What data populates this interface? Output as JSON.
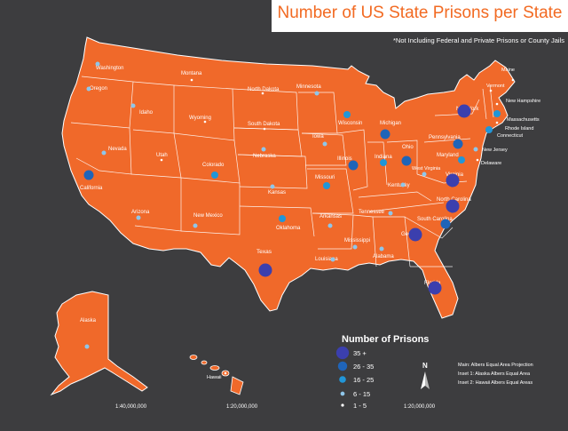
{
  "title": "Number of US State Prisons per State",
  "subtitle": "*Not Including Federal and Private Prisons or County Jails",
  "colors": {
    "background": "#3d3d3f",
    "land": "#f0692a",
    "border": "#ffffff",
    "title": "#f26a22",
    "tier_35_plus": "#3b3fae",
    "tier_26_35": "#1f64b8",
    "tier_16_25": "#2196d8",
    "tier_6_15": "#8fc6ea",
    "tier_1_5": "#ffffff"
  },
  "legend": {
    "title": "Number of Prisons",
    "items": [
      {
        "tier": "tier_35_plus",
        "label": "35 +"
      },
      {
        "tier": "tier_26_35",
        "label": "26 - 35"
      },
      {
        "tier": "tier_16_25",
        "label": "16 - 25"
      },
      {
        "tier": "tier_6_15",
        "label": "6 - 15"
      },
      {
        "tier": "tier_1_5",
        "label": "1 - 5"
      }
    ]
  },
  "projection_notes": [
    "Main: Albers Equal Area Projection",
    "Inset 1: Alaska Albers Equal Area",
    "Inset 2: Hawaii Albers Equal Areas"
  ],
  "north_label": "N",
  "scales": {
    "alaska": "1:40,000,000",
    "hawaii": "1:20,000,000",
    "main": "1:20,000,000"
  },
  "states": [
    {
      "name": "Washington",
      "tier": "tier_6_15"
    },
    {
      "name": "Oregon",
      "tier": "tier_6_15"
    },
    {
      "name": "California",
      "tier": "tier_26_35"
    },
    {
      "name": "Idaho",
      "tier": "tier_6_15"
    },
    {
      "name": "Nevada",
      "tier": "tier_6_15"
    },
    {
      "name": "Montana",
      "tier": "tier_1_5"
    },
    {
      "name": "Wyoming",
      "tier": "tier_1_5"
    },
    {
      "name": "Utah",
      "tier": "tier_1_5"
    },
    {
      "name": "Arizona",
      "tier": "tier_6_15"
    },
    {
      "name": "Colorado",
      "tier": "tier_16_25"
    },
    {
      "name": "New Mexico",
      "tier": "tier_6_15"
    },
    {
      "name": "North Dakota",
      "tier": "tier_1_5"
    },
    {
      "name": "South Dakota",
      "tier": "tier_1_5"
    },
    {
      "name": "Nebraska",
      "tier": "tier_6_15"
    },
    {
      "name": "Kansas",
      "tier": "tier_6_15"
    },
    {
      "name": "Oklahoma",
      "tier": "tier_16_25"
    },
    {
      "name": "Texas",
      "tier": "tier_35_plus"
    },
    {
      "name": "Minnesota",
      "tier": "tier_6_15"
    },
    {
      "name": "Iowa",
      "tier": "tier_6_15"
    },
    {
      "name": "Missouri",
      "tier": "tier_16_25"
    },
    {
      "name": "Arkansas",
      "tier": "tier_6_15"
    },
    {
      "name": "Louisiana",
      "tier": "tier_6_15"
    },
    {
      "name": "Wisconsin",
      "tier": "tier_16_25"
    },
    {
      "name": "Illinois",
      "tier": "tier_26_35"
    },
    {
      "name": "Michigan",
      "tier": "tier_26_35"
    },
    {
      "name": "Indiana",
      "tier": "tier_16_25"
    },
    {
      "name": "Ohio",
      "tier": "tier_26_35"
    },
    {
      "name": "Kentucky",
      "tier": "tier_6_15"
    },
    {
      "name": "Tennessee",
      "tier": "tier_6_15"
    },
    {
      "name": "Mississippi",
      "tier": "tier_6_15"
    },
    {
      "name": "Alabama",
      "tier": "tier_6_15"
    },
    {
      "name": "Georgia",
      "tier": "tier_35_plus"
    },
    {
      "name": "Florida",
      "tier": "tier_35_plus"
    },
    {
      "name": "South Carolina",
      "tier": "tier_26_35"
    },
    {
      "name": "North Carolina",
      "tier": "tier_35_plus"
    },
    {
      "name": "Virginia",
      "tier": "tier_35_plus"
    },
    {
      "name": "West Virginia",
      "tier": "tier_6_15"
    },
    {
      "name": "Pennsylvania",
      "tier": "tier_26_35"
    },
    {
      "name": "New York",
      "tier": "tier_35_plus"
    },
    {
      "name": "Maryland",
      "tier": "tier_16_25"
    },
    {
      "name": "Delaware",
      "tier": "tier_1_5"
    },
    {
      "name": "New Jersey",
      "tier": "tier_6_15"
    },
    {
      "name": "Connecticut",
      "tier": "tier_16_25"
    },
    {
      "name": "Rhode Island",
      "tier": "tier_1_5"
    },
    {
      "name": "Massachusetts",
      "tier": "tier_16_25"
    },
    {
      "name": "Vermont",
      "tier": "tier_1_5"
    },
    {
      "name": "New Hampshire",
      "tier": "tier_1_5"
    },
    {
      "name": "Maine",
      "tier": "tier_1_5"
    },
    {
      "name": "Alaska",
      "tier": "tier_6_15"
    },
    {
      "name": "Hawaii",
      "tier": "tier_1_5"
    }
  ]
}
